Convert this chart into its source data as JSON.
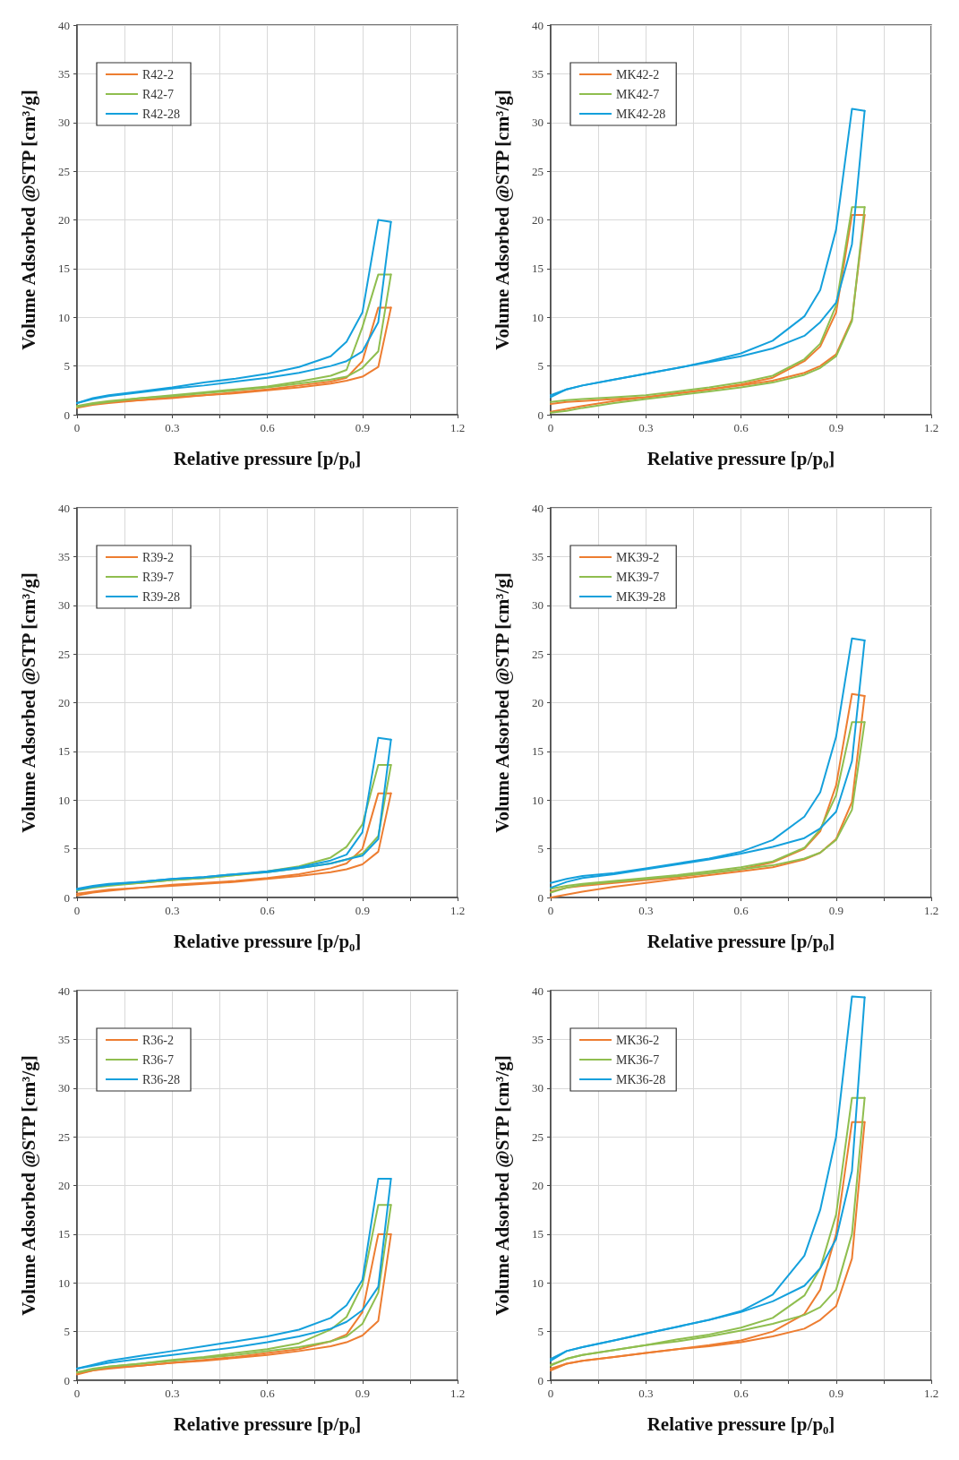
{
  "chart_data": [
    {
      "type": "line",
      "xlabel": "Relative pressure [p/p₀]",
      "ylabel": "Volume Adsorbed @STP [cm³/g]",
      "xlim": [
        0,
        1.2
      ],
      "ylim": [
        0,
        40
      ],
      "xticks": [
        0,
        {
          "value": 0.15,
          "label": null
        },
        0.3,
        {
          "value": 0.45,
          "label": null
        },
        0.6,
        {
          "value": 0.75,
          "label": null
        },
        0.9,
        {
          "value": 1.05,
          "label": null
        },
        1.2
      ],
      "yticks": [
        0,
        5,
        10,
        15,
        20,
        25,
        30,
        35,
        40
      ],
      "grid": true,
      "legend": "top left",
      "marker": "none",
      "line_style": "solid",
      "series": [
        {
          "name": "R42-2",
          "color": "#ed7d31",
          "x": [
            0,
            0.05,
            0.1,
            0.2,
            0.3,
            0.4,
            0.5,
            0.6,
            0.7,
            0.8,
            0.85,
            0.9,
            0.95,
            0.99
          ],
          "values": [
            0.7,
            1.0,
            1.2,
            1.5,
            1.7,
            2.0,
            2.2,
            2.5,
            2.8,
            3.2,
            3.5,
            3.9,
            4.9,
            11
          ]
        },
        {
          "color": "#ed7d31",
          "x": [
            0.99,
            0.95,
            0.9,
            0.85,
            0.8,
            0.7,
            0.6,
            0.5,
            0.4,
            0.3,
            0.2,
            0.1,
            0.05,
            0
          ],
          "values": [
            11,
            11,
            5.5,
            3.8,
            3.4,
            3.0,
            2.6,
            2.3,
            2.0,
            1.8,
            1.5,
            1.3,
            1.1,
            0.8
          ]
        },
        {
          "name": "R42-7",
          "color": "#8fbe4f",
          "x": [
            0,
            0.05,
            0.1,
            0.2,
            0.3,
            0.4,
            0.5,
            0.6,
            0.7,
            0.8,
            0.85,
            0.9,
            0.95,
            0.99
          ],
          "values": [
            0.8,
            1.1,
            1.3,
            1.7,
            1.9,
            2.2,
            2.5,
            2.8,
            3.2,
            3.6,
            3.9,
            4.8,
            6.5,
            14.4
          ]
        },
        {
          "color": "#8fbe4f",
          "x": [
            0.99,
            0.95,
            0.9,
            0.85,
            0.8,
            0.7,
            0.6,
            0.5,
            0.4,
            0.3,
            0.2,
            0.1,
            0.05,
            0
          ],
          "values": [
            14.4,
            14.4,
            9,
            4.6,
            4.0,
            3.4,
            2.9,
            2.6,
            2.3,
            2.0,
            1.7,
            1.4,
            1.2,
            0.9
          ]
        },
        {
          "name": "R42-28",
          "color": "#14a0dc",
          "x": [
            0,
            0.05,
            0.1,
            0.2,
            0.3,
            0.4,
            0.5,
            0.6,
            0.7,
            0.8,
            0.85,
            0.9,
            0.95,
            0.99
          ],
          "values": [
            1.2,
            1.6,
            1.9,
            2.3,
            2.7,
            3.0,
            3.4,
            3.8,
            4.3,
            5.0,
            5.5,
            6.5,
            9.5,
            19.8
          ]
        },
        {
          "color": "#14a0dc",
          "x": [
            0.99,
            0.95,
            0.9,
            0.85,
            0.8,
            0.7,
            0.6,
            0.5,
            0.4,
            0.3,
            0.2,
            0.1,
            0.05,
            0
          ],
          "values": [
            19.8,
            20,
            10.5,
            7.5,
            6.0,
            4.9,
            4.2,
            3.7,
            3.3,
            2.8,
            2.4,
            2.0,
            1.7,
            1.2
          ]
        }
      ]
    },
    {
      "type": "line",
      "xlabel": "Relative pressure [p/p₀]",
      "ylabel": "Volume Adsorbed @STP [cm³/g]",
      "xlim": [
        0,
        1.2
      ],
      "ylim": [
        0,
        40
      ],
      "xticks": [
        0,
        {
          "value": 0.15,
          "label": null
        },
        0.3,
        {
          "value": 0.45,
          "label": null
        },
        0.6,
        {
          "value": 0.75,
          "label": null
        },
        0.9,
        {
          "value": 1.05,
          "label": null
        },
        1.2
      ],
      "yticks": [
        0,
        5,
        10,
        15,
        20,
        25,
        30,
        35,
        40
      ],
      "grid": true,
      "legend": "top left",
      "marker": "none",
      "line_style": "solid",
      "series": [
        {
          "name": "MK42-2",
          "color": "#ed7d31",
          "x": [
            0,
            0.05,
            0.1,
            0.2,
            0.3,
            0.4,
            0.5,
            0.6,
            0.7,
            0.8,
            0.85,
            0.9,
            0.95,
            0.99
          ],
          "values": [
            0.3,
            0.6,
            0.9,
            1.4,
            1.8,
            2.2,
            2.6,
            3.0,
            3.5,
            4.3,
            5.0,
            6.2,
            9.8,
            20.5
          ]
        },
        {
          "color": "#ed7d31",
          "x": [
            0.99,
            0.95,
            0.9,
            0.85,
            0.8,
            0.7,
            0.6,
            0.5,
            0.4,
            0.3,
            0.2,
            0.1,
            0.05,
            0
          ],
          "values": [
            20.5,
            20.5,
            10.5,
            7.0,
            5.5,
            3.8,
            3.1,
            2.6,
            2.2,
            1.8,
            1.6,
            1.4,
            1.3,
            1.1
          ]
        },
        {
          "name": "MK42-7",
          "color": "#8fbe4f",
          "x": [
            0,
            0.05,
            0.1,
            0.2,
            0.3,
            0.4,
            0.5,
            0.6,
            0.7,
            0.8,
            0.85,
            0.9,
            0.95,
            0.99
          ],
          "values": [
            0.2,
            0.4,
            0.7,
            1.2,
            1.6,
            2.0,
            2.4,
            2.8,
            3.3,
            4.1,
            4.8,
            6.0,
            9.6,
            21.3
          ]
        },
        {
          "color": "#8fbe4f",
          "x": [
            0.99,
            0.95,
            0.9,
            0.85,
            0.8,
            0.7,
            0.6,
            0.5,
            0.4,
            0.3,
            0.2,
            0.1,
            0.05,
            0
          ],
          "values": [
            21.3,
            21.3,
            11.2,
            7.3,
            5.7,
            4.0,
            3.3,
            2.8,
            2.4,
            2.0,
            1.8,
            1.6,
            1.5,
            1.3
          ]
        },
        {
          "name": "MK42-28",
          "color": "#14a0dc",
          "x": [
            0,
            0.05,
            0.1,
            0.2,
            0.3,
            0.4,
            0.5,
            0.6,
            0.7,
            0.8,
            0.85,
            0.9,
            0.95,
            0.99
          ],
          "values": [
            1.8,
            2.6,
            3.0,
            3.6,
            4.2,
            4.8,
            5.4,
            6.0,
            6.8,
            8.1,
            9.5,
            11.5,
            17.5,
            31.2
          ]
        },
        {
          "color": "#14a0dc",
          "x": [
            0.99,
            0.95,
            0.9,
            0.85,
            0.8,
            0.7,
            0.6,
            0.5,
            0.4,
            0.3,
            0.2,
            0.1,
            0.05,
            0
          ],
          "values": [
            31.2,
            31.4,
            19,
            12.8,
            10.1,
            7.6,
            6.3,
            5.5,
            4.8,
            4.2,
            3.6,
            3.0,
            2.6,
            2.0
          ]
        }
      ]
    },
    {
      "type": "line",
      "xlabel": "Relative pressure [p/p₀]",
      "ylabel": "Volume Adsorbed @STP [cm³/g]",
      "xlim": [
        0,
        1.2
      ],
      "ylim": [
        0,
        40
      ],
      "xticks": [
        0,
        {
          "value": 0.15,
          "label": null
        },
        0.3,
        {
          "value": 0.45,
          "label": null
        },
        0.6,
        {
          "value": 0.75,
          "label": null
        },
        0.9,
        {
          "value": 1.05,
          "label": null
        },
        1.2
      ],
      "yticks": [
        0,
        5,
        10,
        15,
        20,
        25,
        30,
        35,
        40
      ],
      "grid": true,
      "legend": "top left",
      "marker": "none",
      "line_style": "solid",
      "series": [
        {
          "name": "R39-2",
          "color": "#ed7d31",
          "x": [
            0,
            0.05,
            0.1,
            0.2,
            0.3,
            0.4,
            0.5,
            0.6,
            0.7,
            0.8,
            0.85,
            0.9,
            0.95,
            0.99
          ],
          "values": [
            0.2,
            0.5,
            0.7,
            1.0,
            1.2,
            1.4,
            1.6,
            1.9,
            2.2,
            2.6,
            2.9,
            3.4,
            4.7,
            10.7
          ]
        },
        {
          "color": "#ed7d31",
          "x": [
            0.99,
            0.95,
            0.9,
            0.85,
            0.8,
            0.7,
            0.6,
            0.5,
            0.4,
            0.3,
            0.2,
            0.1,
            0.05,
            0
          ],
          "values": [
            10.7,
            10.7,
            5,
            3.5,
            3.0,
            2.4,
            2.0,
            1.7,
            1.5,
            1.3,
            1.0,
            0.8,
            0.6,
            0.4
          ]
        },
        {
          "name": "R39-7",
          "color": "#8fbe4f",
          "x": [
            0,
            0.05,
            0.1,
            0.2,
            0.3,
            0.4,
            0.5,
            0.6,
            0.7,
            0.8,
            0.85,
            0.9,
            0.95,
            0.99
          ],
          "values": [
            0.7,
            1.0,
            1.2,
            1.5,
            1.8,
            2.0,
            2.3,
            2.6,
            3.0,
            3.5,
            3.9,
            4.5,
            6.3,
            13.6
          ]
        },
        {
          "color": "#8fbe4f",
          "x": [
            0.99,
            0.95,
            0.9,
            0.85,
            0.8,
            0.7,
            0.6,
            0.5,
            0.4,
            0.3,
            0.2,
            0.1,
            0.05,
            0
          ],
          "values": [
            13.6,
            13.6,
            7.5,
            5.2,
            4.1,
            3.2,
            2.7,
            2.3,
            2.0,
            1.8,
            1.5,
            1.3,
            1.1,
            0.8
          ]
        },
        {
          "name": "R39-28",
          "color": "#14a0dc",
          "x": [
            0,
            0.05,
            0.1,
            0.2,
            0.3,
            0.4,
            0.5,
            0.6,
            0.7,
            0.8,
            0.85,
            0.9,
            0.95,
            0.99
          ],
          "values": [
            0.8,
            1.1,
            1.3,
            1.6,
            1.9,
            2.1,
            2.4,
            2.6,
            3.0,
            3.5,
            3.9,
            4.3,
            6.0,
            16.2
          ]
        },
        {
          "color": "#14a0dc",
          "x": [
            0.99,
            0.95,
            0.9,
            0.85,
            0.8,
            0.7,
            0.6,
            0.5,
            0.4,
            0.3,
            0.2,
            0.1,
            0.05,
            0
          ],
          "values": [
            16.2,
            16.4,
            6.7,
            4.4,
            3.8,
            3.1,
            2.7,
            2.4,
            2.1,
            1.9,
            1.6,
            1.4,
            1.2,
            0.9
          ]
        }
      ]
    },
    {
      "type": "line",
      "xlabel": "Relative pressure [p/p₀]",
      "ylabel": "Volume Adsorbed @STP [cm³/g]",
      "xlim": [
        0,
        1.2
      ],
      "ylim": [
        0,
        40
      ],
      "xticks": [
        0,
        {
          "value": 0.15,
          "label": null
        },
        0.3,
        {
          "value": 0.45,
          "label": null
        },
        0.6,
        {
          "value": 0.75,
          "label": null
        },
        0.9,
        {
          "value": 1.05,
          "label": null
        },
        1.2
      ],
      "yticks": [
        0,
        5,
        10,
        15,
        20,
        25,
        30,
        35,
        40
      ],
      "grid": true,
      "legend": "top left",
      "marker": "none",
      "line_style": "solid",
      "series": [
        {
          "name": "MK39-2",
          "color": "#ed7d31",
          "x": [
            0,
            0.05,
            0.1,
            0.2,
            0.3,
            0.4,
            0.5,
            0.6,
            0.7,
            0.8,
            0.85,
            0.9,
            0.95,
            0.99
          ],
          "values": [
            0.0,
            0.3,
            0.6,
            1.1,
            1.5,
            1.9,
            2.3,
            2.7,
            3.1,
            3.9,
            4.6,
            6.0,
            9.8,
            20.7
          ]
        },
        {
          "color": "#ed7d31",
          "x": [
            0.99,
            0.95,
            0.9,
            0.85,
            0.8,
            0.7,
            0.6,
            0.5,
            0.4,
            0.3,
            0.2,
            0.1,
            0.05,
            0
          ],
          "values": [
            20.7,
            20.9,
            11.5,
            6.8,
            5.0,
            3.6,
            2.9,
            2.5,
            2.1,
            1.8,
            1.5,
            1.2,
            1.0,
            0.6
          ]
        },
        {
          "name": "MK39-7",
          "color": "#8fbe4f",
          "x": [
            0,
            0.05,
            0.1,
            0.2,
            0.3,
            0.4,
            0.5,
            0.6,
            0.7,
            0.8,
            0.85,
            0.9,
            0.95,
            0.99
          ],
          "values": [
            0.5,
            1.0,
            1.3,
            1.6,
            1.9,
            2.2,
            2.5,
            2.9,
            3.3,
            4.0,
            4.6,
            5.9,
            9.0,
            18
          ]
        },
        {
          "color": "#8fbe4f",
          "x": [
            0.99,
            0.95,
            0.9,
            0.85,
            0.8,
            0.7,
            0.6,
            0.5,
            0.4,
            0.3,
            0.2,
            0.1,
            0.05,
            0
          ],
          "values": [
            18,
            18,
            10.5,
            7,
            5.1,
            3.7,
            3.1,
            2.7,
            2.3,
            2.0,
            1.7,
            1.4,
            1.2,
            0.9
          ]
        },
        {
          "name": "MK39-28",
          "color": "#14a0dc",
          "x": [
            0,
            0.05,
            0.1,
            0.2,
            0.3,
            0.4,
            0.5,
            0.6,
            0.7,
            0.8,
            0.85,
            0.9,
            0.95,
            0.99
          ],
          "values": [
            1.0,
            1.6,
            2.0,
            2.4,
            2.9,
            3.4,
            3.9,
            4.5,
            5.2,
            6.1,
            7.1,
            8.8,
            14,
            26.4
          ]
        },
        {
          "color": "#14a0dc",
          "x": [
            0.99,
            0.95,
            0.9,
            0.85,
            0.8,
            0.7,
            0.6,
            0.5,
            0.4,
            0.3,
            0.2,
            0.1,
            0.05,
            0
          ],
          "values": [
            26.4,
            26.6,
            16.5,
            10.8,
            8.3,
            5.9,
            4.7,
            4.0,
            3.5,
            3.0,
            2.5,
            2.2,
            1.9,
            1.5
          ]
        }
      ]
    },
    {
      "type": "line",
      "xlabel": "Relative pressure [p/p₀]",
      "ylabel": "Volume Adsorbed @STP [cm³/g]",
      "xlim": [
        0,
        1.2
      ],
      "ylim": [
        0,
        40
      ],
      "xticks": [
        0,
        {
          "value": 0.15,
          "label": null
        },
        0.3,
        {
          "value": 0.45,
          "label": null
        },
        0.6,
        {
          "value": 0.75,
          "label": null
        },
        0.9,
        {
          "value": 1.05,
          "label": null
        },
        1.2
      ],
      "yticks": [
        0,
        5,
        10,
        15,
        20,
        25,
        30,
        35,
        40
      ],
      "grid": true,
      "legend": "top left",
      "marker": "none",
      "line_style": "solid",
      "series": [
        {
          "name": "R36-2",
          "color": "#ed7d31",
          "x": [
            0,
            0.05,
            0.1,
            0.2,
            0.3,
            0.4,
            0.5,
            0.6,
            0.7,
            0.8,
            0.85,
            0.9,
            0.95,
            0.99
          ],
          "values": [
            0.6,
            1.0,
            1.2,
            1.5,
            1.8,
            2.0,
            2.3,
            2.6,
            3.0,
            3.5,
            3.9,
            4.6,
            6.1,
            15
          ]
        },
        {
          "color": "#ed7d31",
          "x": [
            0.99,
            0.95,
            0.9,
            0.85,
            0.8,
            0.7,
            0.6,
            0.5,
            0.4,
            0.3,
            0.2,
            0.1,
            0.05,
            0
          ],
          "values": [
            15,
            15,
            7,
            4.7,
            4.0,
            3.2,
            2.8,
            2.4,
            2.1,
            1.8,
            1.5,
            1.3,
            1.0,
            0.7
          ]
        },
        {
          "name": "R36-7",
          "color": "#8fbe4f",
          "x": [
            0,
            0.05,
            0.1,
            0.2,
            0.3,
            0.4,
            0.5,
            0.6,
            0.7,
            0.8,
            0.85,
            0.9,
            0.95,
            0.99
          ],
          "values": [
            0.8,
            1.1,
            1.4,
            1.7,
            2.0,
            2.3,
            2.6,
            3.0,
            3.4,
            4.0,
            4.5,
            5.8,
            9,
            18
          ]
        },
        {
          "color": "#8fbe4f",
          "x": [
            0.99,
            0.95,
            0.9,
            0.85,
            0.8,
            0.7,
            0.6,
            0.5,
            0.4,
            0.3,
            0.2,
            0.1,
            0.05,
            0
          ],
          "values": [
            18,
            18,
            9.8,
            6.5,
            5.2,
            3.8,
            3.2,
            2.8,
            2.4,
            2.1,
            1.7,
            1.4,
            1.2,
            0.8
          ]
        },
        {
          "name": "R36-28",
          "color": "#14a0dc",
          "x": [
            0,
            0.05,
            0.1,
            0.2,
            0.3,
            0.4,
            0.5,
            0.6,
            0.7,
            0.8,
            0.85,
            0.9,
            0.95,
            0.99
          ],
          "values": [
            1.2,
            1.5,
            1.8,
            2.2,
            2.6,
            3.0,
            3.4,
            3.9,
            4.5,
            5.3,
            6.0,
            7.2,
            9.6,
            20.7
          ]
        },
        {
          "color": "#14a0dc",
          "x": [
            0.99,
            0.95,
            0.9,
            0.85,
            0.8,
            0.7,
            0.6,
            0.5,
            0.4,
            0.3,
            0.2,
            0.1,
            0.05,
            0
          ],
          "values": [
            20.7,
            20.7,
            10.3,
            7.7,
            6.4,
            5.2,
            4.5,
            4.0,
            3.5,
            3.0,
            2.5,
            2.0,
            1.6,
            1.2
          ]
        }
      ]
    },
    {
      "type": "line",
      "xlabel": "Relative pressure [p/p₀]",
      "ylabel": "Volume Adsorbed @STP [cm³/g]",
      "xlim": [
        0,
        1.2
      ],
      "ylim": [
        0,
        40
      ],
      "xticks": [
        0,
        {
          "value": 0.15,
          "label": null
        },
        0.3,
        {
          "value": 0.45,
          "label": null
        },
        0.6,
        {
          "value": 0.75,
          "label": null
        },
        0.9,
        {
          "value": 1.05,
          "label": null
        },
        1.2
      ],
      "yticks": [
        0,
        5,
        10,
        15,
        20,
        25,
        30,
        35,
        40
      ],
      "grid": true,
      "legend": "top left",
      "marker": "none",
      "line_style": "solid",
      "series": [
        {
          "name": "MK36-2",
          "color": "#ed7d31",
          "x": [
            0,
            0.05,
            0.1,
            0.2,
            0.3,
            0.4,
            0.5,
            0.6,
            0.7,
            0.8,
            0.85,
            0.9,
            0.95,
            0.99
          ],
          "values": [
            1.0,
            1.7,
            2.0,
            2.4,
            2.8,
            3.2,
            3.5,
            3.9,
            4.5,
            5.3,
            6.2,
            7.6,
            12.5,
            26.5
          ]
        },
        {
          "color": "#ed7d31",
          "x": [
            0.99,
            0.95,
            0.9,
            0.85,
            0.8,
            0.7,
            0.6,
            0.5,
            0.4,
            0.3,
            0.2,
            0.1,
            0.05,
            0
          ],
          "values": [
            26.5,
            26.5,
            15,
            9.3,
            6.8,
            5.0,
            4.1,
            3.6,
            3.2,
            2.8,
            2.4,
            2.0,
            1.7,
            1.2
          ]
        },
        {
          "name": "MK36-7",
          "color": "#8fbe4f",
          "x": [
            0,
            0.05,
            0.1,
            0.2,
            0.3,
            0.4,
            0.5,
            0.6,
            0.7,
            0.8,
            0.85,
            0.9,
            0.95,
            0.99
          ],
          "values": [
            1.5,
            2.2,
            2.6,
            3.1,
            3.6,
            4.0,
            4.5,
            5.1,
            5.8,
            6.7,
            7.5,
            9.3,
            15,
            29
          ]
        },
        {
          "color": "#8fbe4f",
          "x": [
            0.99,
            0.95,
            0.9,
            0.85,
            0.8,
            0.7,
            0.6,
            0.5,
            0.4,
            0.3,
            0.2,
            0.1,
            0.05,
            0
          ],
          "values": [
            29,
            29,
            17,
            11.5,
            8.7,
            6.4,
            5.4,
            4.7,
            4.2,
            3.6,
            3.1,
            2.6,
            2.2,
            1.6
          ]
        },
        {
          "name": "MK36-28",
          "color": "#14a0dc",
          "x": [
            0,
            0.05,
            0.1,
            0.2,
            0.3,
            0.4,
            0.5,
            0.6,
            0.7,
            0.8,
            0.85,
            0.9,
            0.95,
            0.99
          ],
          "values": [
            2.0,
            3.0,
            3.4,
            4.1,
            4.8,
            5.5,
            6.2,
            7.0,
            8.1,
            9.7,
            11.5,
            14.5,
            21.5,
            39.3
          ]
        },
        {
          "color": "#14a0dc",
          "x": [
            0.99,
            0.95,
            0.9,
            0.85,
            0.8,
            0.7,
            0.6,
            0.5,
            0.4,
            0.3,
            0.2,
            0.1,
            0.05,
            0
          ],
          "values": [
            39.3,
            39.4,
            25,
            17.5,
            12.8,
            8.8,
            7.1,
            6.2,
            5.5,
            4.8,
            4.1,
            3.4,
            3.0,
            2.2
          ]
        }
      ]
    }
  ]
}
